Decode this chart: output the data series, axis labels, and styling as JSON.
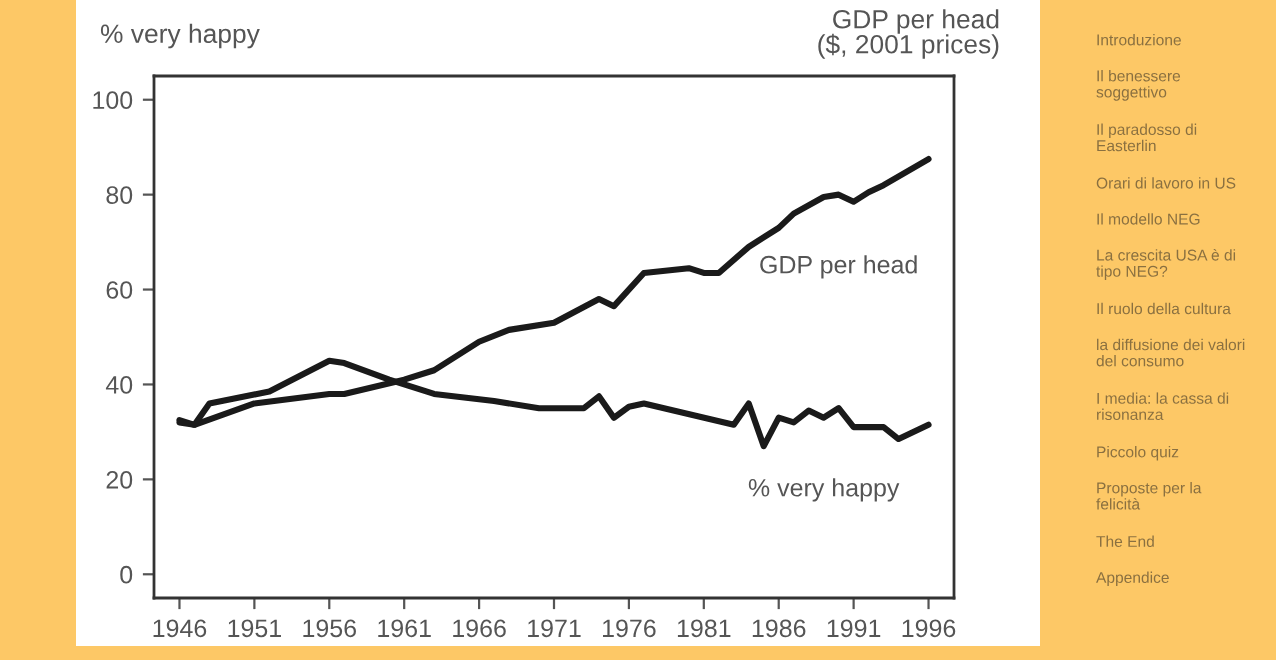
{
  "chart_data": {
    "type": "line",
    "ylabel": "% very happy",
    "annotations": [
      "GDP per head\n($, 2001 prices)",
      "Introduzione",
      "Il benessere\nsoggettivo",
      "Il paradosso di\nEasterlin",
      "Orari di lavoro in US",
      "Il modello NEG",
      "La crescita USA è di\ntipo NEG?",
      "Il ruolo della cultura",
      "la diffusione dei valori\ndel consumo",
      "I media: la cassa di\nrisonanza",
      "Piccolo quiz",
      "Proposte per la\nfelicità",
      "The End",
      "Appendice"
    ],
    "series": [
      {
        "name": "GDP per head",
        "color": "#1a1a1a",
        "x": [
          1946,
          1947,
          1951,
          1956,
          1957,
          1961,
          1963,
          1966,
          1968,
          1971,
          1974,
          1975,
          1977,
          1980,
          1981,
          1982,
          1984,
          1986,
          1987,
          1989,
          1990,
          1991,
          1992,
          1993,
          1996
        ],
        "values": [
          32.5,
          31.5,
          36,
          38,
          38,
          41,
          43,
          49,
          51.5,
          53,
          58,
          56.5,
          63.5,
          64.5,
          63.5,
          63.5,
          69,
          73,
          76,
          79.5,
          80,
          78.5,
          80.5,
          82,
          87.5
        ]
      },
      {
        "name": "% very happy",
        "color": "#1a1a1a",
        "x": [
          1946,
          1947,
          1948,
          1952,
          1956,
          1957,
          1960,
          1963,
          1967,
          1970,
          1973,
          1974,
          1975,
          1976,
          1977,
          1983,
          1984,
          1985,
          1986,
          1987,
          1988,
          1989,
          1990,
          1991,
          1993,
          1994,
          1996
        ],
        "values": [
          32,
          31.5,
          36,
          38.5,
          45,
          44.5,
          41,
          38,
          36.5,
          35,
          35,
          37.5,
          33,
          35.3,
          36,
          31.5,
          36,
          27,
          33,
          32,
          34.5,
          33,
          35,
          31,
          31,
          28.5,
          31.5
        ]
      }
    ],
    "xlim": [
      1944.3,
      1997.7
    ],
    "ylim": [
      -5,
      105
    ],
    "xticks": [
      1946,
      1951,
      1956,
      1961,
      1966,
      1971,
      1976,
      1981,
      1986,
      1991,
      1996
    ],
    "yticks": [
      0,
      20,
      40,
      60,
      80,
      100
    ],
    "grid": false,
    "legend": false,
    "marker": "none",
    "line_style": "solid"
  }
}
